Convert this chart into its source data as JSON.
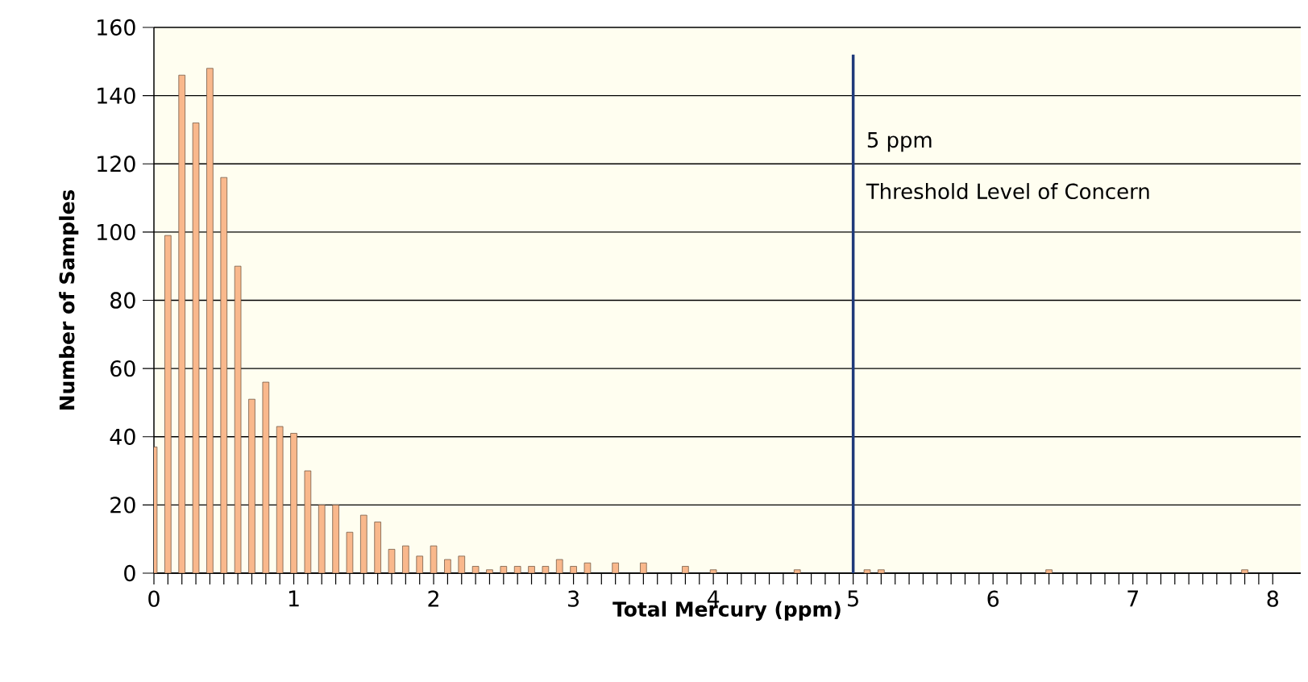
{
  "chart_data": {
    "type": "bar",
    "xlabel": "Total Mercury (ppm)",
    "ylabel": "Number of Samples",
    "x": [
      0,
      0.1,
      0.2,
      0.3,
      0.4,
      0.5,
      0.6,
      0.7,
      0.8,
      0.9,
      1.0,
      1.1,
      1.2,
      1.3,
      1.4,
      1.5,
      1.6,
      1.7,
      1.8,
      1.9,
      2.0,
      2.1,
      2.2,
      2.3,
      2.4,
      2.5,
      2.6,
      2.7,
      2.8,
      2.9,
      3.0,
      3.1,
      3.3,
      3.5,
      3.8,
      4.0,
      4.6,
      5.1,
      5.2,
      6.4,
      7.8
    ],
    "values": [
      37,
      99,
      146,
      132,
      148,
      116,
      90,
      51,
      56,
      43,
      41,
      30,
      20,
      20,
      12,
      17,
      15,
      7,
      8,
      5,
      8,
      4,
      5,
      2,
      1,
      2,
      2,
      2,
      2,
      4,
      2,
      3,
      3,
      3,
      2,
      1,
      1,
      1,
      1,
      1,
      1
    ],
    "color": "#f9b88c",
    "xlim": [
      0,
      8.2
    ],
    "xticks": [
      0,
      1,
      2,
      3,
      4,
      5,
      6,
      7,
      8
    ],
    "ylim": [
      0,
      160
    ],
    "yticks": [
      0,
      20,
      40,
      60,
      80,
      100,
      120,
      140,
      160
    ],
    "grid": "y",
    "ref_lines": [
      {
        "axis": "x",
        "value": 5,
        "label": "5 ppm",
        "color": "#1f3a7a"
      }
    ],
    "annotations": [
      "Threshold Level of Concern"
    ]
  }
}
